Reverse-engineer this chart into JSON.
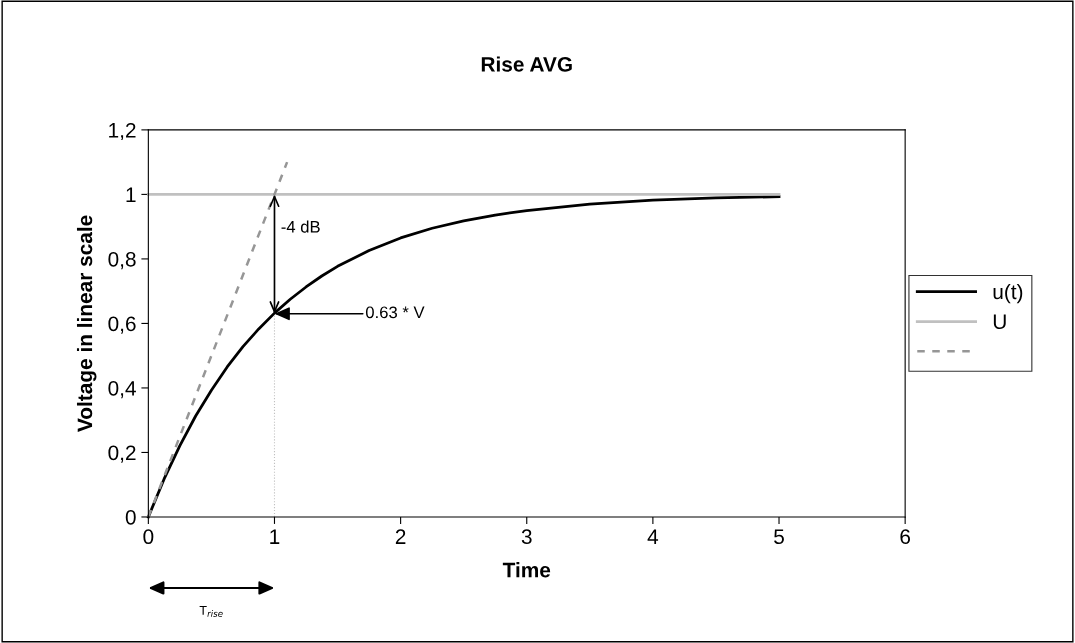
{
  "chart_data": {
    "type": "line",
    "title": "Rise AVG",
    "xlabel": "Time",
    "ylabel": "Voltage in linear scale",
    "series": [
      {
        "name": "u(t)",
        "color": "#000000",
        "line_style": "solid",
        "x": [
          0,
          0.125,
          0.25,
          0.375,
          0.5,
          0.625,
          0.75,
          0.875,
          1,
          1.125,
          1.25,
          1.375,
          1.5,
          1.75,
          2,
          2.25,
          2.5,
          2.75,
          3,
          3.5,
          4,
          4.5,
          5
        ],
        "values": [
          0,
          0.118,
          0.221,
          0.313,
          0.393,
          0.465,
          0.528,
          0.583,
          0.632,
          0.675,
          0.713,
          0.747,
          0.777,
          0.826,
          0.865,
          0.895,
          0.918,
          0.936,
          0.95,
          0.97,
          0.982,
          0.989,
          0.993
        ]
      },
      {
        "name": "U",
        "color": "#c0c0c0",
        "line_style": "solid",
        "x": [
          0,
          5
        ],
        "values": [
          1,
          1
        ]
      },
      {
        "color": "#969696",
        "line_style": "dashed",
        "x": [
          0,
          1.1
        ],
        "values": [
          0,
          1.1
        ]
      },
      {
        "color": "#c0c0c0",
        "line_style": "dotted",
        "x": [
          1,
          1
        ],
        "values": [
          0,
          0.63
        ]
      }
    ],
    "annotations": [
      {
        "text": "0.63 * V",
        "x": 1,
        "y": 0.63
      },
      {
        "text": "-4 dB",
        "x": 1,
        "y": 1
      },
      "T$_{rise}$"
    ],
    "xlim": [
      0,
      6
    ],
    "xticks": [
      0,
      1,
      2,
      3,
      4,
      5,
      6
    ],
    "ylim": [
      0,
      1.2
    ],
    "yticks": [
      0,
      {
        "value": 0.2,
        "label": "0,2"
      },
      {
        "value": 0.4,
        "label": "0,4"
      },
      {
        "value": 0.6,
        "label": "0,6"
      },
      {
        "value": 0.8,
        "label": "0,8"
      },
      1,
      {
        "value": 1.2,
        "label": "1,2"
      }
    ],
    "grid": false,
    "legend": "right",
    "marker": "none"
  }
}
